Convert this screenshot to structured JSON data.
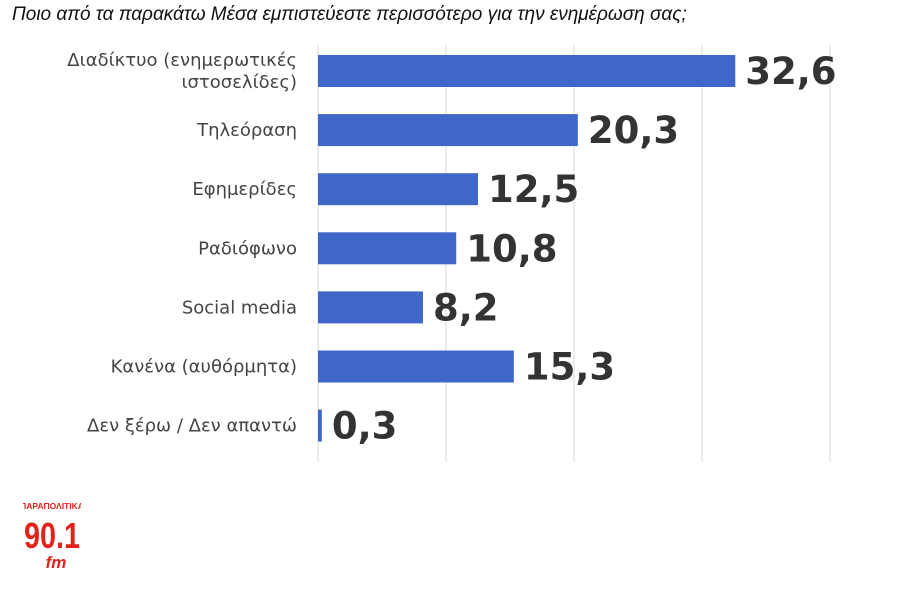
{
  "chart_data": {
    "type": "bar",
    "orientation": "horizontal",
    "title": "Ποιο από τα παρακάτω Μέσα εμπιστεύεστε περισσότερο για την ενημέρωση σας;",
    "categories": [
      [
        "Διαδίκτυο (ενημερωτικές",
        "ιστοσελίδες)"
      ],
      [
        "Τηλεόραση"
      ],
      [
        "Εφημερίδες"
      ],
      [
        "Ραδιόφωνο"
      ],
      [
        "Social media"
      ],
      [
        "Κανένα (αυθόρμητα)"
      ],
      [
        "Δεν ξέρω / Δεν απαντώ"
      ]
    ],
    "values": [
      32.6,
      20.3,
      12.5,
      10.8,
      8.2,
      15.3,
      0.3
    ],
    "value_labels": [
      "32,6",
      "20,3",
      "12,5",
      "10,8",
      "8,2",
      "15,3",
      "0,3"
    ],
    "xlim": [
      0,
      40
    ],
    "grid": "vertical",
    "bar_color": "#3f67c9",
    "grid_color": "#d9d9d9"
  },
  "logo": {
    "top_text": "ΠΑΡΑΠΟΛΙΤΙΚΑ",
    "number": "90.1",
    "suffix": "fm",
    "color": "#e2231a"
  }
}
